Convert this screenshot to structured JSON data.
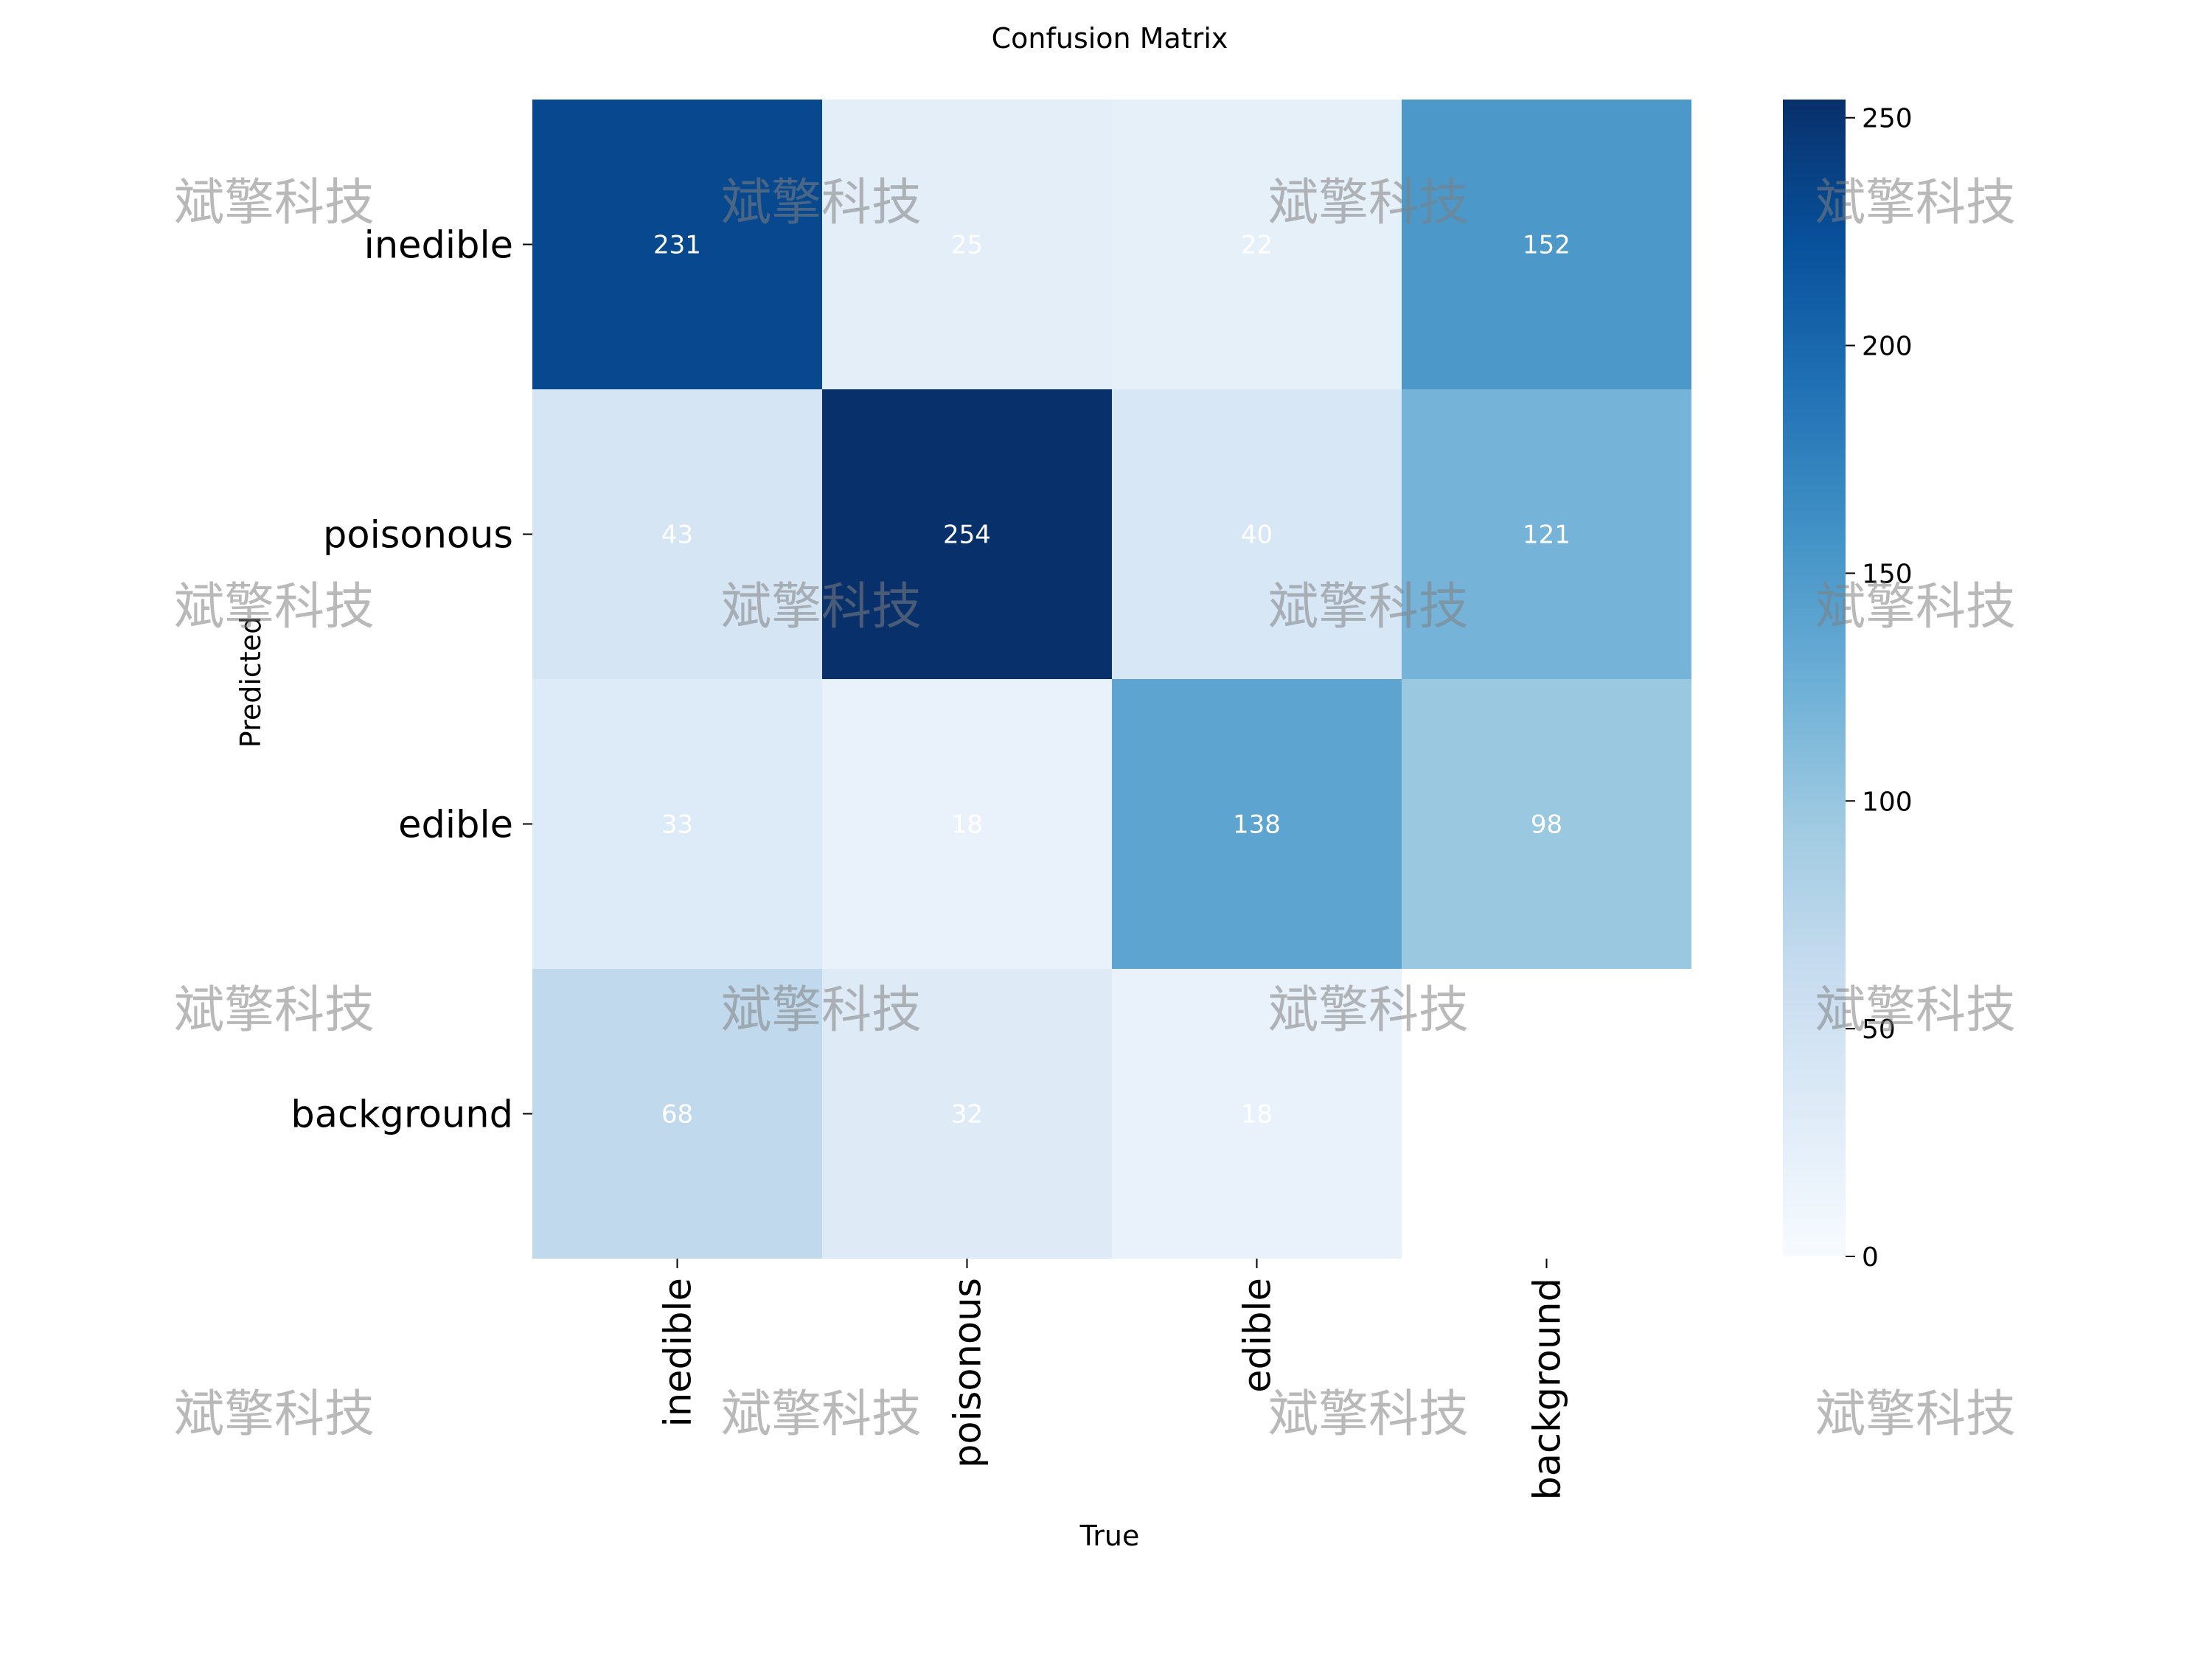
{
  "chart_data": {
    "type": "heatmap",
    "title": "Confusion Matrix",
    "xlabel": "True",
    "ylabel": "Predicted",
    "x_categories": [
      "inedible",
      "poisonous",
      "edible",
      "background"
    ],
    "y_categories": [
      "inedible",
      "poisonous",
      "edible",
      "background"
    ],
    "values": [
      [
        231,
        25,
        22,
        152
      ],
      [
        43,
        254,
        40,
        121
      ],
      [
        33,
        18,
        138,
        98
      ],
      [
        68,
        32,
        18,
        null
      ]
    ],
    "colormap": "Blues",
    "colorbar": {
      "range": [
        0,
        254
      ],
      "ticks": [
        0,
        50,
        100,
        150,
        200,
        250
      ]
    },
    "grid": false,
    "legend": "colorbar-right"
  },
  "watermark": {
    "text": "斌擎科技"
  }
}
